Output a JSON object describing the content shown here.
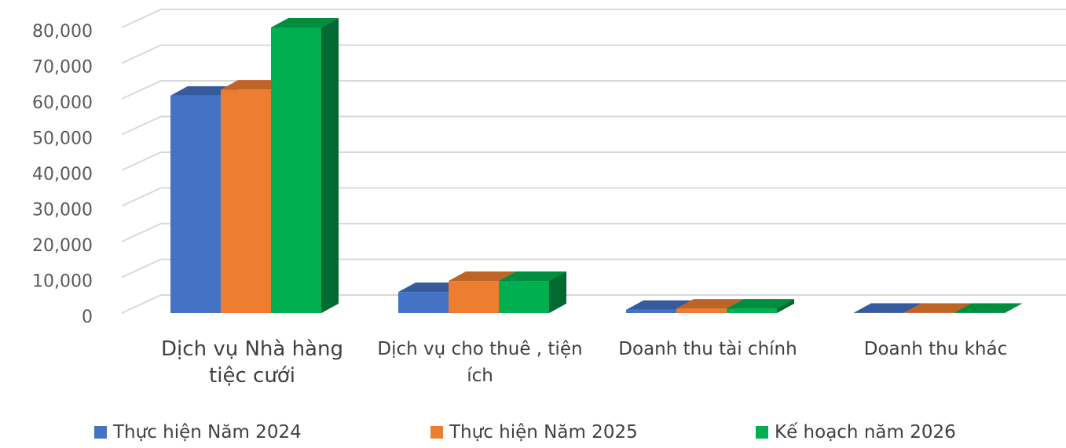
{
  "chart_data": {
    "type": "bar3d",
    "categories": [
      "Dịch vụ Nhà hàng tiệc cưới",
      "Dịch vụ cho thuê , tiện ích",
      "Doanh thu tài chính",
      "Doanh thu khác"
    ],
    "series": [
      {
        "name": "Thực hiện Năm 2024",
        "color": "#4472c4",
        "values": [
          60900,
          5900,
          900,
          100
        ]
      },
      {
        "name": "Thực hiện Năm 2025",
        "color": "#ed7d31",
        "values": [
          62600,
          9000,
          1300,
          100
        ]
      },
      {
        "name": "Kế hoạch năm 2026",
        "color": "#00b050",
        "values": [
          80000,
          9000,
          1300,
          100
        ]
      }
    ],
    "ylim": [
      0,
      80000
    ],
    "yticks": [
      0,
      {
        "value": 10000,
        "label": "10,000"
      },
      {
        "value": 20000,
        "label": "20,000"
      },
      {
        "value": 30000,
        "label": "30,000"
      },
      {
        "value": 40000,
        "label": "40,000"
      },
      {
        "value": 50000,
        "label": "50,000"
      },
      {
        "value": 60000,
        "label": "60,000"
      },
      {
        "value": 70000,
        "label": "70,000"
      },
      {
        "value": 80000,
        "label": "80,000"
      }
    ],
    "grid": true
  }
}
